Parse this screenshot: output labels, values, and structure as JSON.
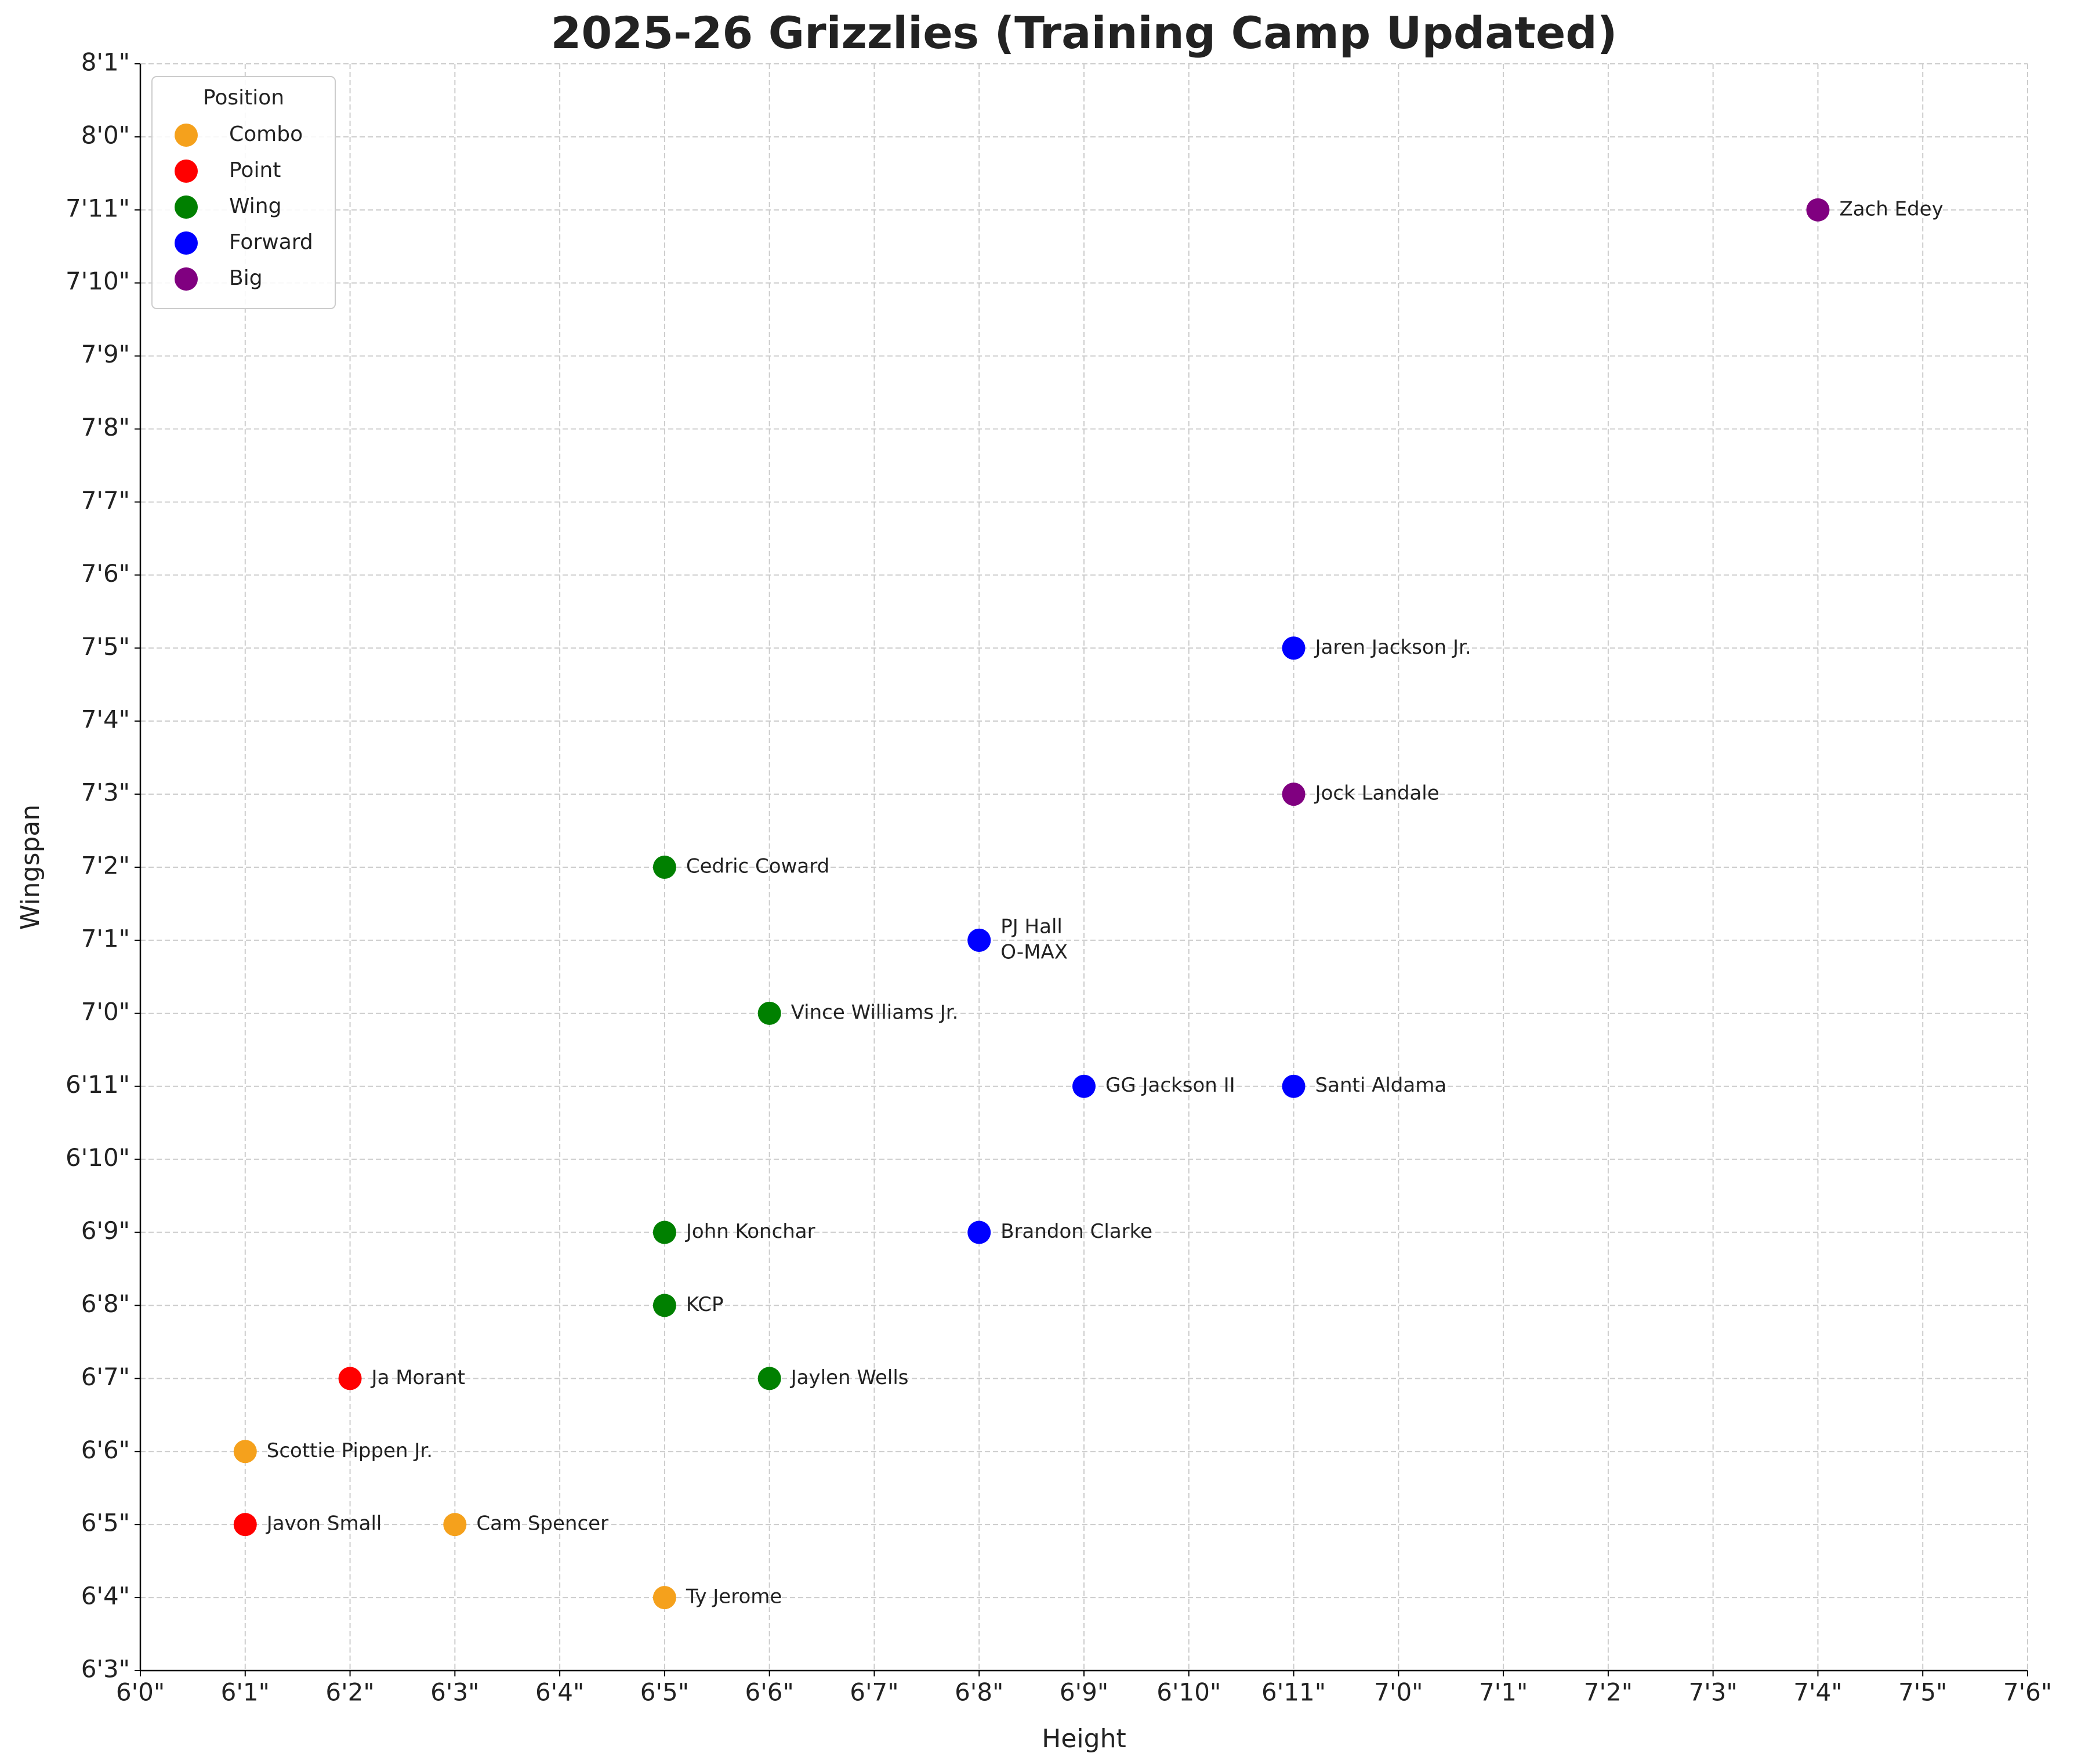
{
  "chart_data": {
    "type": "scatter",
    "title": "2025-26 Grizzlies (Training Camp Updated)",
    "x_label": "Height",
    "y_label": "Wingspan",
    "legend_title": "Position",
    "legend": "upper left",
    "grid": true,
    "xlim": [
      72,
      90
    ],
    "ylim": [
      75,
      97
    ],
    "xticks": [
      {
        "value": 72,
        "label": "6'0\""
      },
      {
        "value": 73,
        "label": "6'1\""
      },
      {
        "value": 74,
        "label": "6'2\""
      },
      {
        "value": 75,
        "label": "6'3\""
      },
      {
        "value": 76,
        "label": "6'4\""
      },
      {
        "value": 77,
        "label": "6'5\""
      },
      {
        "value": 78,
        "label": "6'6\""
      },
      {
        "value": 79,
        "label": "6'7\""
      },
      {
        "value": 80,
        "label": "6'8\""
      },
      {
        "value": 81,
        "label": "6'9\""
      },
      {
        "value": 82,
        "label": "6'10\""
      },
      {
        "value": 83,
        "label": "6'11\""
      },
      {
        "value": 84,
        "label": "7'0\""
      },
      {
        "value": 85,
        "label": "7'1\""
      },
      {
        "value": 86,
        "label": "7'2\""
      },
      {
        "value": 87,
        "label": "7'3\""
      },
      {
        "value": 88,
        "label": "7'4\""
      },
      {
        "value": 89,
        "label": "7'5\""
      },
      {
        "value": 90,
        "label": "7'6\""
      }
    ],
    "yticks": [
      {
        "value": 75,
        "label": "6'3\""
      },
      {
        "value": 76,
        "label": "6'4\""
      },
      {
        "value": 77,
        "label": "6'5\""
      },
      {
        "value": 78,
        "label": "6'6\""
      },
      {
        "value": 79,
        "label": "6'7\""
      },
      {
        "value": 80,
        "label": "6'8\""
      },
      {
        "value": 81,
        "label": "6'9\""
      },
      {
        "value": 82,
        "label": "6'10\""
      },
      {
        "value": 83,
        "label": "6'11\""
      },
      {
        "value": 84,
        "label": "7'0\""
      },
      {
        "value": 85,
        "label": "7'1\""
      },
      {
        "value": 86,
        "label": "7'2\""
      },
      {
        "value": 87,
        "label": "7'3\""
      },
      {
        "value": 88,
        "label": "7'4\""
      },
      {
        "value": 89,
        "label": "7'5\""
      },
      {
        "value": 90,
        "label": "7'6\""
      },
      {
        "value": 91,
        "label": "7'7\""
      },
      {
        "value": 92,
        "label": "7'8\""
      },
      {
        "value": 93,
        "label": "7'9\""
      },
      {
        "value": 94,
        "label": "7'10\""
      },
      {
        "value": 95,
        "label": "7'11\""
      },
      {
        "value": 96,
        "label": "8'0\""
      },
      {
        "value": 97,
        "label": "8'1\""
      }
    ],
    "series": [
      {
        "name": "Combo",
        "color": "#f5a11c",
        "x": [
          73,
          75,
          77
        ],
        "values": [
          78,
          77,
          76
        ],
        "labels": [
          "Scottie Pippen Jr.",
          "Cam Spencer",
          "Ty Jerome"
        ]
      },
      {
        "name": "Point",
        "color": "#ff0000",
        "x": [
          74,
          73
        ],
        "values": [
          79,
          77
        ],
        "labels": [
          "Ja Morant",
          "Javon Small"
        ]
      },
      {
        "name": "Wing",
        "color": "#008000",
        "x": [
          77,
          78,
          77,
          77,
          78
        ],
        "values": [
          86,
          84,
          81,
          80,
          79
        ],
        "labels": [
          "Cedric Coward",
          "Vince Williams Jr.",
          "John Konchar",
          "KCP",
          "Jaylen Wells"
        ]
      },
      {
        "name": "Forward",
        "color": "#0000ff",
        "x": [
          83,
          80,
          80,
          81,
          83,
          80
        ],
        "values": [
          89,
          85,
          85,
          83,
          83,
          81
        ],
        "labels": [
          "Jaren Jackson Jr.",
          "PJ Hall",
          "O-MAX",
          "GG Jackson II",
          "Santi Aldama",
          "Brandon Clarke"
        ]
      },
      {
        "name": "Big",
        "color": "#800080",
        "x": [
          88,
          83
        ],
        "values": [
          95,
          87
        ],
        "labels": [
          "Zach Edey",
          "Jock Landale"
        ]
      }
    ]
  }
}
